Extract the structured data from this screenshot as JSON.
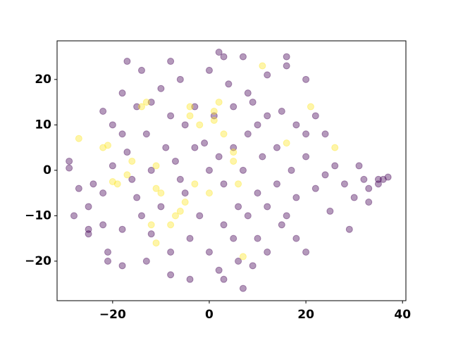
{
  "chart_data": {
    "type": "scatter",
    "xlim": [
      -31.5,
      40.7
    ],
    "ylim": [
      -28.7,
      28.5
    ],
    "xticks": [
      {
        "value": -20,
        "label": "−20"
      },
      0,
      20,
      40
    ],
    "yticks": [
      {
        "value": -20,
        "label": "−20"
      },
      {
        "value": -10,
        "label": "−10"
      },
      0,
      10,
      20
    ],
    "grid": false,
    "series": [
      {
        "color": "#440154",
        "x": [
          -29,
          -29,
          -27,
          -28,
          -25,
          -25,
          -25,
          -21,
          -21,
          -18,
          -17,
          -14,
          -13,
          -8,
          -8,
          -4,
          2,
          3,
          7,
          3,
          7,
          9,
          12,
          16,
          16,
          20,
          22,
          24,
          26,
          28,
          29,
          31,
          32,
          33,
          35,
          36,
          37,
          35,
          33,
          30,
          25,
          20,
          18,
          15,
          10,
          -22,
          -20,
          -18,
          -24,
          -22,
          -15,
          -10,
          -5,
          0,
          2,
          5,
          8,
          10,
          12,
          15,
          18,
          20,
          -5,
          -8,
          -12,
          -15,
          -18,
          -10,
          -6,
          0,
          4,
          8,
          12,
          -3,
          -7,
          -12,
          -16,
          -20,
          -2,
          3,
          6,
          10,
          14,
          18,
          22,
          24,
          -4,
          -8,
          -12,
          0,
          5,
          8,
          12,
          16,
          20,
          17,
          14,
          11,
          7,
          3,
          -1,
          -6,
          -9,
          -13,
          -17,
          -3,
          1,
          5,
          9,
          -14,
          -18,
          -22,
          6,
          2
        ],
        "y": [
          2,
          0.5,
          -4,
          -10,
          -8,
          -14,
          -13,
          -20,
          -18,
          -21,
          24,
          22,
          -20,
          -23,
          24,
          -24,
          26,
          25,
          25,
          -24,
          -26,
          -21,
          -18,
          25,
          23,
          20,
          12,
          8,
          1,
          -3,
          -13,
          1,
          -2,
          -4,
          -2,
          -2,
          -1.5,
          -3,
          -7,
          -6,
          -9,
          -18,
          -15,
          -12,
          -15,
          13,
          10,
          8,
          -3,
          -5,
          -6,
          -8,
          -5,
          0,
          3,
          5,
          8,
          10,
          12,
          13,
          10,
          8,
          10,
          12,
          15,
          14,
          17,
          18,
          20,
          22,
          19,
          17,
          21,
          5,
          2,
          0,
          -2,
          1,
          -10,
          -12,
          -8,
          -5,
          -3,
          -6,
          -4,
          -1,
          -15,
          -18,
          -14,
          -18,
          -15,
          -10,
          -8,
          -10,
          3,
          0,
          5,
          3,
          0,
          -3,
          6,
          -2,
          5,
          8,
          4,
          14,
          12,
          14,
          15,
          -10,
          -13,
          -12,
          -20,
          -22
        ]
      },
      {
        "color": "#fde725",
        "x": [
          -22,
          -21,
          -19,
          -20,
          -17,
          -16,
          -14,
          -13,
          -11,
          -11,
          -10,
          -12,
          -11,
          -7,
          -6,
          -5,
          -4,
          -4,
          -2,
          1,
          1,
          2,
          3,
          5,
          6,
          5,
          11,
          16,
          21,
          26,
          -8,
          7,
          -3,
          0,
          -27
        ],
        "y": [
          5,
          5.5,
          -3,
          -2.5,
          -1,
          2,
          14,
          15,
          1,
          -4,
          -5,
          -12,
          -16,
          -10,
          -9,
          -7,
          14,
          12,
          10,
          13,
          11,
          15,
          8,
          4,
          -3,
          2,
          23,
          6,
          14,
          5,
          -12,
          -19,
          -3,
          -5,
          7
        ]
      }
    ]
  }
}
